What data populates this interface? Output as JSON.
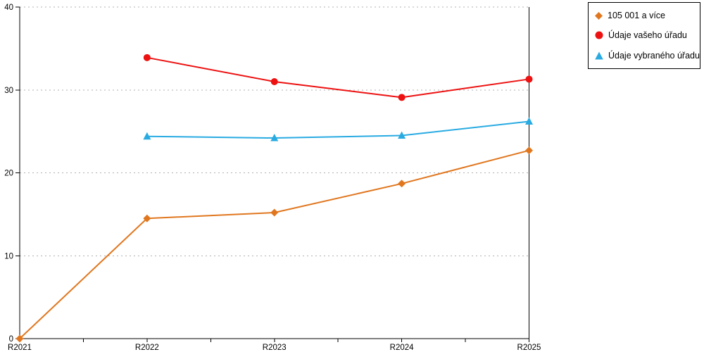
{
  "page": {
    "background": "#ffffff"
  },
  "chart_data": {
    "type": "line",
    "title": "",
    "xlabel": "",
    "ylabel": "",
    "categories": [
      "R2021",
      "R2022",
      "R2023",
      "R2024",
      "R2025"
    ],
    "series": [
      {
        "name": "105 001 a více",
        "marker": "diamond",
        "color": "#E0771F",
        "values": [
          0,
          14.5,
          15.2,
          18.7,
          22.7
        ]
      },
      {
        "name": "Údaje vašeho úřadu",
        "marker": "circle",
        "color": "#ED1111",
        "values": [
          null,
          33.9,
          31.0,
          29.1,
          31.3
        ]
      },
      {
        "name": "Údaje vybraného úřadu",
        "marker": "triangle",
        "color": "#29ABE2",
        "values": [
          null,
          24.4,
          24.2,
          24.5,
          26.2
        ]
      }
    ],
    "ylim": [
      0,
      40
    ],
    "yticks": [
      0,
      10,
      20,
      30,
      40
    ],
    "x_minor_ticks_between_years": 1,
    "grid": "horizontal-dashed",
    "grid_color": "#b0b0b0",
    "axis_color": "#000000",
    "right_border": true,
    "legend_position": "top-right"
  }
}
